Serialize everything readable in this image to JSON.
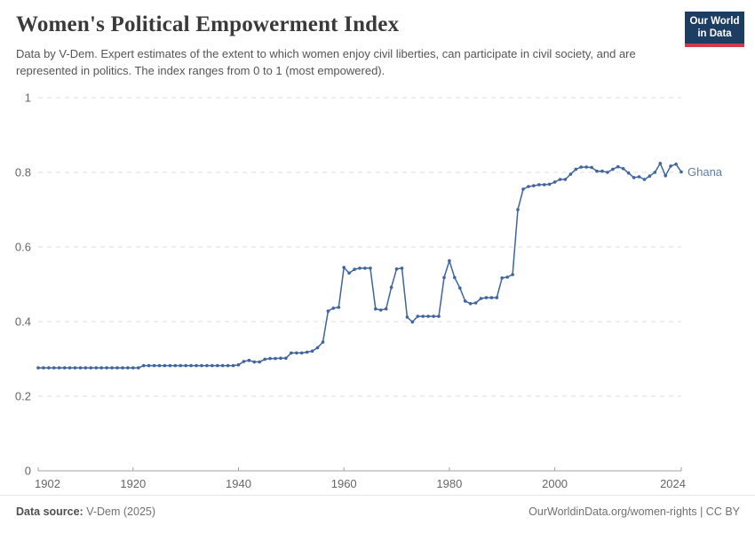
{
  "header": {
    "title": "Women's Political Empowerment Index",
    "subtitle": "Data by V-Dem. Expert estimates of the extent to which women enjoy civil liberties, can participate in civil society, and are represented in politics. The index ranges from 0 to 1 (most empowered).",
    "logo": {
      "line1": "Our World",
      "line2": "in Data",
      "bg_color": "#1d3d63",
      "accent_color": "#cf3b4c"
    }
  },
  "chart_data": {
    "type": "line",
    "title": "Women's Political Empowerment Index",
    "xlabel": "",
    "ylabel": "",
    "xlim": [
      1902,
      2024
    ],
    "ylim": [
      0,
      1
    ],
    "x_ticks": [
      1902,
      1920,
      1940,
      1960,
      1980,
      2000,
      2024
    ],
    "y_ticks": [
      0,
      0.2,
      0.4,
      0.6,
      0.8,
      1
    ],
    "grid": "horizontal-dashed",
    "legend": "end-of-line-label",
    "axis_color": "#a3a3a3",
    "gridline_color": "#dedede",
    "tick_label_color": "#666666",
    "series": [
      {
        "name": "Ghana",
        "color": "#3f649e",
        "label_color": "#5b7cab",
        "start_year": 1902,
        "end_year": 2024,
        "values": [
          0.276,
          0.276,
          0.276,
          0.276,
          0.276,
          0.276,
          0.276,
          0.276,
          0.276,
          0.276,
          0.276,
          0.276,
          0.276,
          0.276,
          0.276,
          0.276,
          0.276,
          0.276,
          0.276,
          0.276,
          0.282,
          0.282,
          0.282,
          0.282,
          0.282,
          0.282,
          0.282,
          0.282,
          0.282,
          0.282,
          0.282,
          0.282,
          0.282,
          0.282,
          0.282,
          0.282,
          0.282,
          0.282,
          0.284,
          0.293,
          0.296,
          0.292,
          0.292,
          0.299,
          0.301,
          0.301,
          0.302,
          0.302,
          0.316,
          0.316,
          0.316,
          0.318,
          0.321,
          0.33,
          0.345,
          0.428,
          0.436,
          0.438,
          0.545,
          0.53,
          0.54,
          0.543,
          0.543,
          0.543,
          0.434,
          0.431,
          0.434,
          0.492,
          0.541,
          0.543,
          0.412,
          0.399,
          0.414,
          0.414,
          0.414,
          0.414,
          0.414,
          0.518,
          0.563,
          0.518,
          0.49,
          0.455,
          0.448,
          0.45,
          0.462,
          0.464,
          0.464,
          0.464,
          0.517,
          0.519,
          0.526,
          0.7,
          0.755,
          0.762,
          0.764,
          0.767,
          0.767,
          0.768,
          0.774,
          0.781,
          0.781,
          0.795,
          0.808,
          0.814,
          0.814,
          0.813,
          0.803,
          0.803,
          0.8,
          0.808,
          0.815,
          0.81,
          0.798,
          0.786,
          0.788,
          0.781,
          0.79,
          0.8,
          0.824,
          0.791,
          0.817,
          0.822,
          0.801
        ]
      }
    ]
  },
  "footer": {
    "source_label": "Data source:",
    "source_value": "V-Dem (2025)",
    "url": "OurWorldinData.org/women-rights",
    "separator": " | ",
    "license": "CC BY"
  }
}
